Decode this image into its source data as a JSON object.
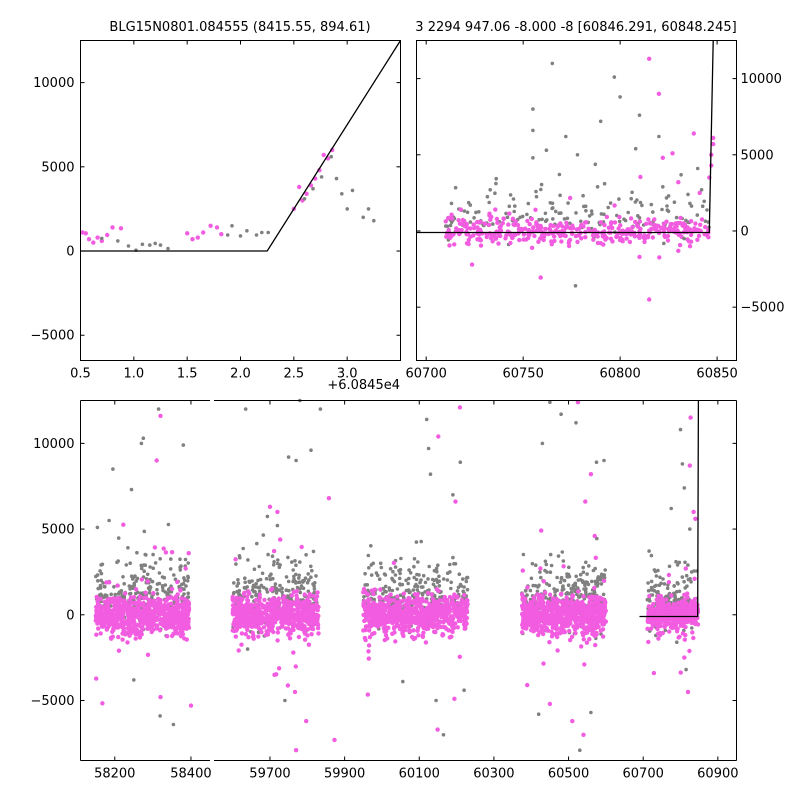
{
  "colors": {
    "pink": "#f25ce0",
    "gray": "#808080",
    "model": "#000000",
    "background": "#ffffff"
  },
  "chart_data": [
    {
      "id": "top-left",
      "type": "scatter",
      "title": "BLG15N0801.084555 (8415.55, 894.61)",
      "xlabel": "",
      "ylabel": "",
      "xlim": [
        0.5,
        3.5
      ],
      "ylim": [
        -6500,
        12500
      ],
      "xticks": [
        0.5,
        1.0,
        1.5,
        2.0,
        2.5,
        3.0
      ],
      "xtick_labels": [
        "0.5",
        "1.0",
        "1.5",
        "2.0",
        "2.5",
        "3.0"
      ],
      "yticks": [
        -5000,
        0,
        5000,
        10000
      ],
      "ytick_labels": [
        "−5000",
        "0",
        "5000",
        "10000"
      ],
      "offset_text": "+6.0845e4",
      "series": [
        {
          "color": "pink",
          "points": [
            [
              0.52,
              1100
            ],
            [
              0.55,
              1050
            ],
            [
              0.58,
              700
            ],
            [
              0.62,
              500
            ],
            [
              0.66,
              800
            ],
            [
              0.7,
              600
            ],
            [
              0.75,
              950
            ],
            [
              0.8,
              1400
            ],
            [
              0.88,
              1350
            ],
            [
              1.5,
              1050
            ],
            [
              1.55,
              700
            ],
            [
              1.6,
              800
            ],
            [
              1.65,
              1100
            ],
            [
              1.72,
              1500
            ],
            [
              1.78,
              1400
            ],
            [
              1.82,
              1000
            ],
            [
              2.5,
              2500
            ],
            [
              2.55,
              3800
            ],
            [
              2.58,
              3000
            ],
            [
              2.62,
              3400
            ],
            [
              2.66,
              3900
            ],
            [
              2.7,
              4300
            ],
            [
              2.74,
              4800
            ],
            [
              2.78,
              5700
            ],
            [
              2.82,
              5500
            ],
            [
              2.86,
              6000
            ]
          ]
        },
        {
          "color": "gray",
          "points": [
            [
              0.7,
              750
            ],
            [
              0.85,
              600
            ],
            [
              0.95,
              300
            ],
            [
              1.02,
              50
            ],
            [
              1.08,
              400
            ],
            [
              1.15,
              350
            ],
            [
              1.2,
              450
            ],
            [
              1.25,
              350
            ],
            [
              1.32,
              150
            ],
            [
              1.88,
              950
            ],
            [
              1.92,
              1500
            ],
            [
              2.0,
              900
            ],
            [
              2.06,
              1200
            ],
            [
              2.15,
              950
            ],
            [
              2.2,
              1100
            ],
            [
              2.26,
              1100
            ],
            [
              2.6,
              3100
            ],
            [
              2.68,
              3700
            ],
            [
              2.76,
              4400
            ],
            [
              2.85,
              5600
            ],
            [
              2.9,
              4300
            ],
            [
              2.95,
              3400
            ],
            [
              3.0,
              2500
            ],
            [
              3.05,
              3600
            ],
            [
              3.15,
              2000
            ],
            [
              3.2,
              2500
            ],
            [
              3.25,
              1800
            ]
          ]
        }
      ],
      "model": [
        [
          0.5,
          0
        ],
        [
          2.25,
          0
        ],
        [
          3.5,
          12500
        ]
      ]
    },
    {
      "id": "top-right",
      "type": "scatter",
      "title": "3 2294 947.06 -8.000 -8 [60846.291, 60848.245]",
      "xlabel": "",
      "ylabel": "",
      "xlim": [
        60695,
        60860
      ],
      "ylim": [
        -8500,
        12500
      ],
      "xticks": [
        60700,
        60750,
        60800,
        60850
      ],
      "xtick_labels": [
        "60700",
        "60750",
        "60800",
        "60850"
      ],
      "yticks": [
        -5000,
        0,
        5000,
        10000
      ],
      "ytick_labels": [
        "−5000",
        "0",
        "5000",
        "10000"
      ],
      "cluster": {
        "x_start": 60710,
        "x_end": 60846,
        "seed": 7,
        "pink_count": 380,
        "gray_count": 150,
        "spread": 450
      },
      "series": [
        {
          "color": "pink",
          "points": [
            [
              60740,
              800
            ],
            [
              60748,
              -600
            ],
            [
              60772,
              200
            ],
            [
              60790,
              -800
            ],
            [
              60800,
              -600
            ],
            [
              60810,
              -1700
            ],
            [
              60812,
              -400
            ],
            [
              60815,
              -4500
            ],
            [
              60815,
              11300
            ],
            [
              60820,
              9000
            ],
            [
              60822,
              4800
            ],
            [
              60827,
              5100
            ],
            [
              60830,
              3200
            ],
            [
              60830,
              -1300
            ],
            [
              60836,
              -1000
            ],
            [
              60838,
              6400
            ],
            [
              60841,
              2500
            ],
            [
              60846,
              3500
            ],
            [
              60847,
              4300
            ],
            [
              60847,
              5000
            ],
            [
              60848,
              5700
            ],
            [
              60848,
              6100
            ]
          ]
        },
        {
          "color": "gray",
          "points": [
            [
              60733,
              2700
            ],
            [
              60745,
              2100
            ],
            [
              60755,
              8000
            ],
            [
              60755,
              6600
            ],
            [
              60755,
              4800
            ],
            [
              60762,
              5300
            ],
            [
              60765,
              11000
            ],
            [
              60772,
              6200
            ],
            [
              60777,
              -3600
            ],
            [
              60778,
              5000
            ],
            [
              60790,
              7200
            ],
            [
              60792,
              3100
            ],
            [
              60797,
              10100
            ],
            [
              60800,
              8800
            ],
            [
              60808,
              5400
            ],
            [
              60810,
              7600
            ],
            [
              60820,
              6200
            ],
            [
              60822,
              2900
            ],
            [
              60825,
              2300
            ],
            [
              60833,
              -500
            ],
            [
              60835,
              2400
            ],
            [
              60840,
              4100
            ],
            [
              60842,
              2700
            ]
          ]
        }
      ],
      "model": [
        [
          60695,
          -100
        ],
        [
          60846,
          -100
        ],
        [
          60848,
          12500
        ]
      ]
    },
    {
      "id": "bottom",
      "type": "scatter",
      "title": "",
      "xlabel": "",
      "ylabel": "",
      "ylim": [
        -8500,
        12500
      ],
      "yticks": [
        -5000,
        0,
        5000,
        10000
      ],
      "ytick_labels": [
        "−5000",
        "0",
        "5000",
        "10000"
      ],
      "xtick_labels": [
        "58200",
        "58400",
        "59700",
        "59900",
        "60100",
        "60300",
        "60500",
        "60700",
        "60900"
      ],
      "segments": [
        {
          "xlim": [
            58110,
            58450
          ],
          "xticks": [
            58200,
            58400
          ]
        },
        {
          "xlim": [
            59550,
            60950
          ],
          "xticks": [
            59700,
            59900,
            60100,
            60300,
            60500,
            60700,
            60900
          ]
        }
      ],
      "clusters": [
        {
          "x_start": 58150,
          "x_end": 58395,
          "seed": 11,
          "pink_count": 700,
          "gray_count": 260,
          "spread": 550
        },
        {
          "x_start": 59600,
          "x_end": 59830,
          "seed": 23,
          "pink_count": 650,
          "gray_count": 250,
          "spread": 550
        },
        {
          "x_start": 59950,
          "x_end": 60230,
          "seed": 37,
          "pink_count": 750,
          "gray_count": 280,
          "spread": 550
        },
        {
          "x_start": 60375,
          "x_end": 60600,
          "seed": 41,
          "pink_count": 700,
          "gray_count": 260,
          "spread": 550
        },
        {
          "x_start": 60710,
          "x_end": 60847,
          "seed": 53,
          "pink_count": 380,
          "gray_count": 150,
          "spread": 450
        }
      ],
      "series": [
        {
          "color": "pink",
          "points": [
            [
              58320,
              11600
            ],
            [
              58310,
              9000
            ],
            [
              58400,
              -5300
            ],
            [
              58320,
              -4800
            ],
            [
              58222,
              -700
            ],
            [
              59700,
              6300
            ],
            [
              59720,
              6000
            ],
            [
              59712,
              -3500
            ],
            [
              59767,
              -4500
            ],
            [
              59770,
              -7900
            ],
            [
              59797,
              -6200
            ],
            [
              59873,
              -7300
            ],
            [
              59858,
              6800
            ],
            [
              60149,
              -6700
            ],
            [
              60151,
              10400
            ],
            [
              60197,
              6600
            ],
            [
              60194,
              -4900
            ],
            [
              60209,
              12100
            ],
            [
              60450,
              -5200
            ],
            [
              60525,
              12400
            ],
            [
              60560,
              8200
            ],
            [
              60545,
              6600
            ],
            [
              60540,
              -7000
            ],
            [
              60510,
              -6200
            ],
            [
              60825,
              8700
            ],
            [
              60827,
              11500
            ],
            [
              60835,
              6000
            ],
            [
              60840,
              5600
            ],
            [
              60820,
              -4500
            ],
            [
              60810,
              -2500
            ]
          ]
        },
        {
          "color": "gray",
          "points": [
            [
              58195,
              8500
            ],
            [
              58244,
              7300
            ],
            [
              58275,
              10300
            ],
            [
              58270,
              10000
            ],
            [
              58315,
              12000
            ],
            [
              58380,
              9900
            ],
            [
              58185,
              5500
            ],
            [
              58319,
              -5900
            ],
            [
              58354,
              -6400
            ],
            [
              58250,
              -3800
            ],
            [
              59635,
              12000
            ],
            [
              59720,
              5200
            ],
            [
              59750,
              9200
            ],
            [
              59770,
              9000
            ],
            [
              59780,
              12500
            ],
            [
              59835,
              12000
            ],
            [
              59810,
              9600
            ],
            [
              59640,
              -2000
            ],
            [
              59740,
              -5000
            ],
            [
              60056,
              -3900
            ],
            [
              60120,
              11400
            ],
            [
              60125,
              9700
            ],
            [
              60130,
              8200
            ],
            [
              60190,
              7000
            ],
            [
              60210,
              8900
            ],
            [
              60145,
              -5000
            ],
            [
              60220,
              -4400
            ],
            [
              60165,
              -7000
            ],
            [
              60430,
              10000
            ],
            [
              60450,
              12400
            ],
            [
              60480,
              11700
            ],
            [
              60520,
              11200
            ],
            [
              60575,
              8900
            ],
            [
              60595,
              9000
            ],
            [
              60420,
              -5800
            ],
            [
              60530,
              -7900
            ],
            [
              60560,
              -5700
            ],
            [
              60775,
              6200
            ],
            [
              60800,
              10800
            ],
            [
              60805,
              8800
            ],
            [
              60810,
              7400
            ],
            [
              60825,
              5000
            ],
            [
              60790,
              -1600
            ],
            [
              60815,
              -3200
            ]
          ]
        }
      ],
      "model": [
        [
          60690,
          -100
        ],
        [
          60846,
          -100
        ],
        [
          60848,
          12500
        ]
      ]
    }
  ]
}
